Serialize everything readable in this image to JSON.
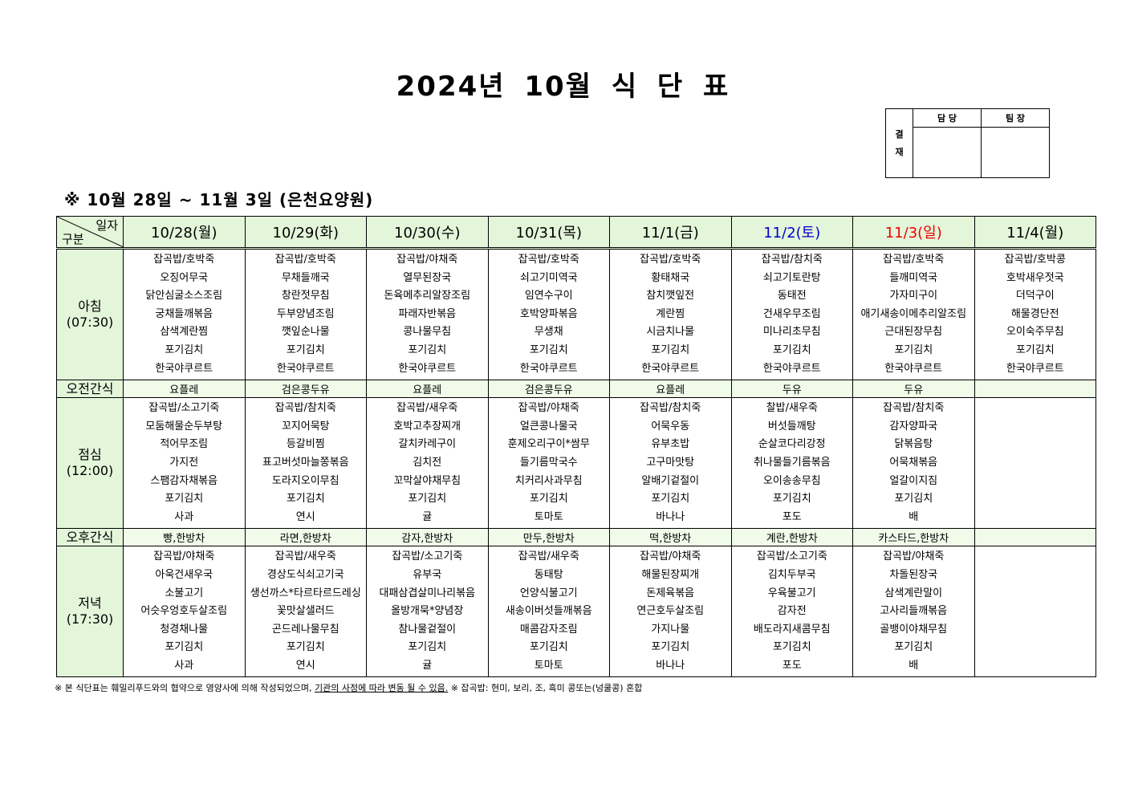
{
  "title": "2024년 10월 식 단 표",
  "approval": {
    "side_label_1": "결",
    "side_label_2": "재",
    "col1": "담 당",
    "col2": "팀 장"
  },
  "subtitle": "※ 10월 28일 ~ 11월 3일 (은천요양원)",
  "header": {
    "corner_top": "일자",
    "corner_bottom": "구분",
    "days": [
      {
        "label": "10/28(월)",
        "color": "#000000"
      },
      {
        "label": "10/29(화)",
        "color": "#000000"
      },
      {
        "label": "10/30(수)",
        "color": "#000000"
      },
      {
        "label": "10/31(목)",
        "color": "#000000"
      },
      {
        "label": "11/1(금)",
        "color": "#000000"
      },
      {
        "label": "11/2(토)",
        "color": "#0000cc"
      },
      {
        "label": "11/3(일)",
        "color": "#ee0000"
      },
      {
        "label": "11/4(월)",
        "color": "#000000"
      }
    ]
  },
  "rows": [
    {
      "type": "meal",
      "label": "아침",
      "time": "(07:30)",
      "cells": [
        [
          "잡곡밥/호박죽",
          "오징어무국",
          "닭안심굴소스조림",
          "궁채들깨볶음",
          "삼색계란찜",
          "포기김치",
          "한국야쿠르트"
        ],
        [
          "잡곡밥/호박죽",
          "무채들깨국",
          "창란젓무침",
          "두부양념조림",
          "깻잎순나물",
          "포기김치",
          "한국야쿠르트"
        ],
        [
          "잡곡밥/야채죽",
          "열무된장국",
          "돈육메추리알장조림",
          "파래자반볶음",
          "콩나물무침",
          "포기김치",
          "한국야쿠르트"
        ],
        [
          "잡곡밥/호박죽",
          "쇠고기미역국",
          "임연수구이",
          "호박양파볶음",
          "무생채",
          "포기김치",
          "한국야쿠르트"
        ],
        [
          "잡곡밥/호박죽",
          "황태채국",
          "참치깻잎전",
          "계란찜",
          "시금치나물",
          "포기김치",
          "한국야쿠르트"
        ],
        [
          "잡곡밥/참치죽",
          "쇠고기토란탕",
          "동태전",
          "건새우무조림",
          "미나리초무침",
          "포기김치",
          "한국야쿠르트"
        ],
        [
          "잡곡밥/호박죽",
          "들깨미역국",
          "가자미구이",
          "애기새송이메추리알조림",
          "근대된장무침",
          "포기김치",
          "한국야쿠르트"
        ],
        [
          "잡곡밥/호박콩",
          "호박새우젓국",
          "더덕구이",
          "해물경단전",
          "오이숙주무침",
          "포기김치",
          "한국야쿠르트"
        ]
      ]
    },
    {
      "type": "snack",
      "label": "오전간식",
      "cells": [
        "요플레",
        "검은콩두유",
        "요플레",
        "검은콩두유",
        "요플레",
        "두유",
        "두유",
        ""
      ]
    },
    {
      "type": "meal",
      "label": "점심",
      "time": "(12:00)",
      "cells": [
        [
          "잡곡밥/소고기죽",
          "모둠해물순두부탕",
          "적어무조림",
          "가지전",
          "스팸감자채볶음",
          "포기김치",
          "사과"
        ],
        [
          "잡곡밥/참치죽",
          "꼬지어묵탕",
          "등갈비찜",
          "표고버섯마늘쫑볶음",
          "도라지오이무침",
          "포기김치",
          "연시"
        ],
        [
          "잡곡밥/새우죽",
          "호박고추장찌개",
          "갈치카레구이",
          "김치전",
          "꼬막살야채무침",
          "포기김치",
          "귤"
        ],
        [
          "잡곡밥/야채죽",
          "얼큰콩나물국",
          "훈제오리구이*쌈무",
          "들기름막국수",
          "치커리사과무침",
          "포기김치",
          "토마토"
        ],
        [
          "잡곡밥/참치죽",
          "어묵우동",
          "유부초밥",
          "고구마맛탕",
          "알배기겉절이",
          "포기김치",
          "바나나"
        ],
        [
          "찰밥/새우죽",
          "버섯들깨탕",
          "순살코다리강정",
          "취나물들기름볶음",
          "오이송송무침",
          "포기김치",
          "포도"
        ],
        [
          "잡곡밥/참치죽",
          "감자양파국",
          "닭볶음탕",
          "어묵채볶음",
          "얼갈이지짐",
          "포기김치",
          "배"
        ],
        []
      ]
    },
    {
      "type": "snack",
      "label": "오후간식",
      "cells": [
        "빵,한방차",
        "라면,한방차",
        "감자,한방차",
        "만두,한방차",
        "떡,한방차",
        "계란,한방차",
        "카스타드,한방차",
        ""
      ]
    },
    {
      "type": "meal",
      "label": "저녁",
      "time": "(17:30)",
      "cells": [
        [
          "잡곡밥/야채죽",
          "아욱건새우국",
          "소불고기",
          "어슷우엉호두살조림",
          "청경채나물",
          "포기김치",
          "사과"
        ],
        [
          "잡곡밥/새우죽",
          "경상도식쇠고기국",
          "생선까스*타르타르드레싱",
          "꽃맛살샐러드",
          "곤드레나물무침",
          "포기김치",
          "연시"
        ],
        [
          "잡곡밥/소고기죽",
          "유부국",
          "대패삼겹살미나리볶음",
          "올방개묵*양념장",
          "참나물겉절이",
          "포기김치",
          "귤"
        ],
        [
          "잡곡밥/새우죽",
          "동태탕",
          "언양식불고기",
          "새송이버섯들깨볶음",
          "매콤감자조림",
          "포기김치",
          "토마토"
        ],
        [
          "잡곡밥/야채죽",
          "해물된장찌개",
          "돈제육볶음",
          "연근호두살조림",
          "가지나물",
          "포기김치",
          "바나나"
        ],
        [
          "잡곡밥/소고기죽",
          "김치두부국",
          "우육불고기",
          "감자전",
          "배도라지새콤무침",
          "포기김치",
          "포도"
        ],
        [
          "잡곡밥/야채죽",
          "차돌된장국",
          "삼색계란말이",
          "고사리들깨볶음",
          "골뱅이야채무침",
          "포기김치",
          "배"
        ],
        []
      ]
    }
  ],
  "footer": {
    "part1": "※ 본 식단표는 훼밀리푸드와의 협약으로 영양사에 의해 작성되었으며, ",
    "underlined": "기관의 사정에 따라 변동 될 수 있음.",
    "part2": " ※ 잡곡밥: 현미, 보리, 조, 흑미 콩또는(넝쿨콩) 혼합"
  }
}
